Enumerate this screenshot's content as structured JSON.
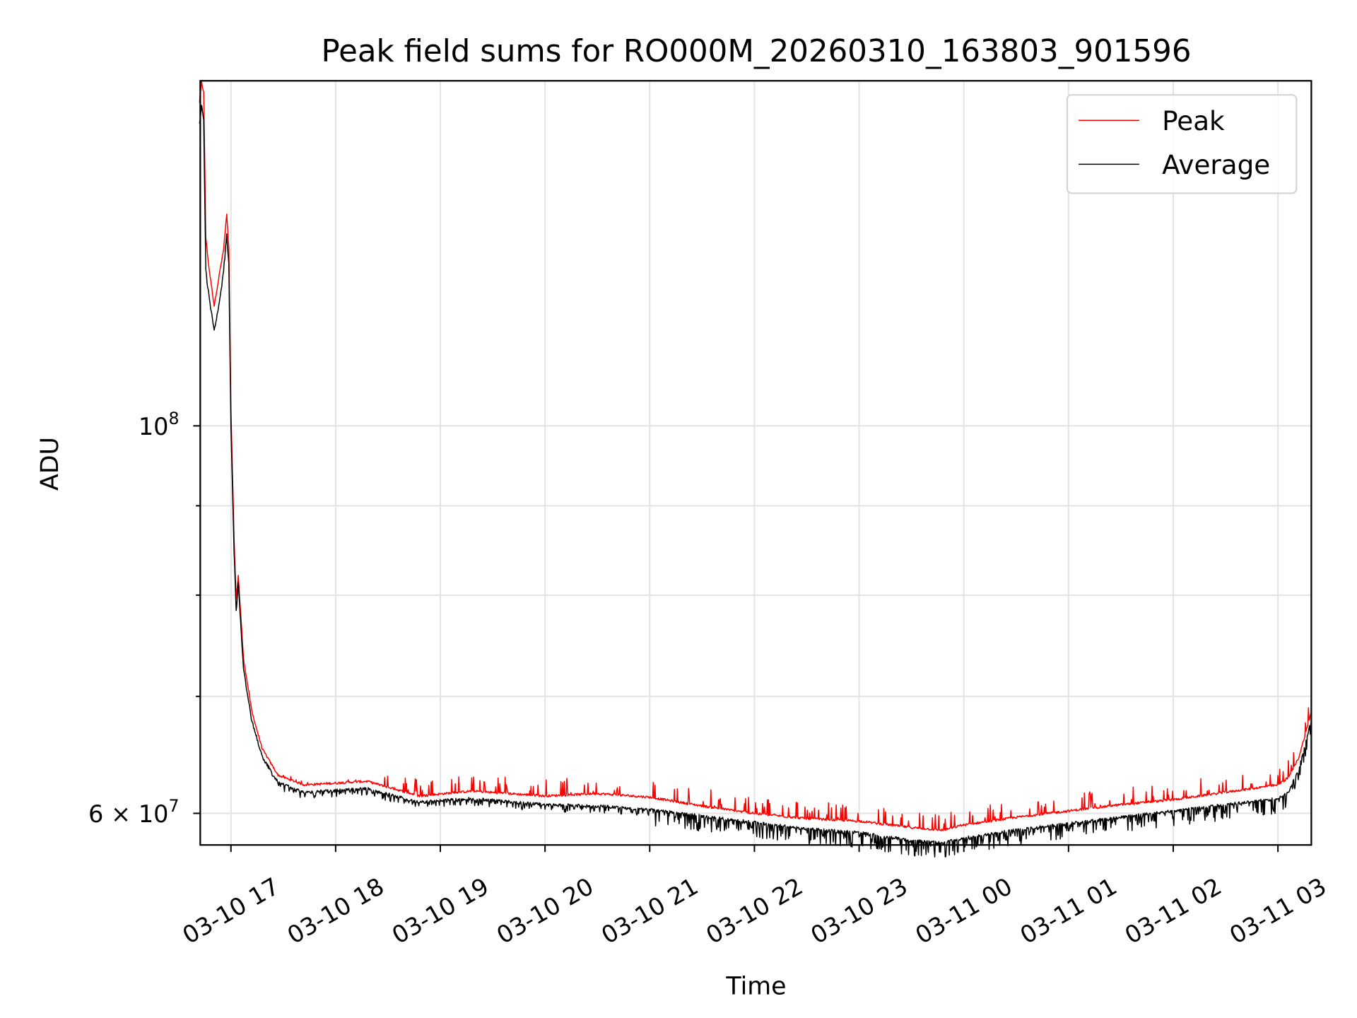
{
  "chart_data": {
    "type": "line",
    "title": "Peak field sums for RO000M_20260310_163803_901596",
    "xlabel": "Time",
    "ylabel": "ADU",
    "yscale": "log",
    "ylim": [
      57550000.0,
      157600000.0
    ],
    "xlim_hours": [
      16.707,
      27.319
    ],
    "x_unit": "hours since 03-10 00:00",
    "grid": true,
    "legend_position": "top-right",
    "x_ticks": [
      {
        "hour": 17,
        "label": "03-10 17"
      },
      {
        "hour": 18,
        "label": "03-10 18"
      },
      {
        "hour": 19,
        "label": "03-10 19"
      },
      {
        "hour": 20,
        "label": "03-10 20"
      },
      {
        "hour": 21,
        "label": "03-10 21"
      },
      {
        "hour": 22,
        "label": "03-10 22"
      },
      {
        "hour": 23,
        "label": "03-10 23"
      },
      {
        "hour": 24,
        "label": "03-11 00"
      },
      {
        "hour": 25,
        "label": "03-11 01"
      },
      {
        "hour": 26,
        "label": "03-11 02"
      },
      {
        "hour": 27,
        "label": "03-11 03"
      }
    ],
    "y_major_ticks": [
      {
        "value": 60000000.0,
        "base": "6 × 10",
        "exp": "7"
      },
      {
        "value": 100000000.0,
        "base": "10",
        "exp": "8"
      }
    ],
    "y_minor_ticks": [
      70000000.0,
      80000000.0,
      90000000.0
    ],
    "series": [
      {
        "name": "Peak",
        "color": "#ff0000",
        "jitter_up_fraction": 0.025,
        "points": [
          [
            16.7,
            15.3
          ],
          [
            16.72,
            15.7
          ],
          [
            16.74,
            15.5
          ],
          [
            16.76,
            12.8
          ],
          [
            16.79,
            12.3
          ],
          [
            16.84,
            11.7
          ],
          [
            16.9,
            12.3
          ],
          [
            16.93,
            12.6
          ],
          [
            16.96,
            13.2
          ],
          [
            16.98,
            12.6
          ],
          [
            17.0,
            10.2
          ],
          [
            17.03,
            8.6
          ],
          [
            17.05,
            7.95
          ],
          [
            17.07,
            8.2
          ],
          [
            17.12,
            7.35
          ],
          [
            17.2,
            6.85
          ],
          [
            17.3,
            6.52
          ],
          [
            17.45,
            6.3
          ],
          [
            17.7,
            6.22
          ],
          [
            18.3,
            6.25
          ],
          [
            18.8,
            6.13
          ],
          [
            19.3,
            6.17
          ],
          [
            20.0,
            6.13
          ],
          [
            20.5,
            6.15
          ],
          [
            21.0,
            6.12
          ],
          [
            21.5,
            6.05
          ],
          [
            22.0,
            5.99
          ],
          [
            22.5,
            5.95
          ],
          [
            23.0,
            5.93
          ],
          [
            23.5,
            5.88
          ],
          [
            23.8,
            5.86
          ],
          [
            24.0,
            5.9
          ],
          [
            24.5,
            5.96
          ],
          [
            25.0,
            6.01
          ],
          [
            25.5,
            6.06
          ],
          [
            26.0,
            6.1
          ],
          [
            26.5,
            6.16
          ],
          [
            27.0,
            6.22
          ],
          [
            27.1,
            6.28
          ],
          [
            27.2,
            6.45
          ],
          [
            27.32,
            6.85
          ]
        ]
      },
      {
        "name": "Average",
        "color": "#000000",
        "jitter_down_fraction": 0.022,
        "points": [
          [
            16.7,
            14.9
          ],
          [
            16.72,
            15.3
          ],
          [
            16.74,
            15.0
          ],
          [
            16.76,
            12.3
          ],
          [
            16.79,
            11.9
          ],
          [
            16.84,
            11.35
          ],
          [
            16.9,
            11.9
          ],
          [
            16.93,
            12.3
          ],
          [
            16.96,
            12.9
          ],
          [
            16.98,
            12.4
          ],
          [
            17.0,
            10.0
          ],
          [
            17.03,
            8.5
          ],
          [
            17.05,
            7.84
          ],
          [
            17.07,
            8.14
          ],
          [
            17.12,
            7.27
          ],
          [
            17.2,
            6.79
          ],
          [
            17.3,
            6.48
          ],
          [
            17.45,
            6.26
          ],
          [
            17.7,
            6.18
          ],
          [
            18.3,
            6.21
          ],
          [
            18.8,
            6.1
          ],
          [
            19.3,
            6.13
          ],
          [
            20.0,
            6.08
          ],
          [
            20.5,
            6.07
          ],
          [
            21.0,
            6.04
          ],
          [
            21.5,
            5.99
          ],
          [
            22.0,
            5.94
          ],
          [
            22.5,
            5.89
          ],
          [
            23.0,
            5.86
          ],
          [
            23.5,
            5.8
          ],
          [
            23.8,
            5.78
          ],
          [
            24.0,
            5.82
          ],
          [
            24.5,
            5.88
          ],
          [
            25.0,
            5.93
          ],
          [
            25.5,
            5.98
          ],
          [
            26.0,
            6.03
          ],
          [
            26.5,
            6.08
          ],
          [
            27.0,
            6.13
          ],
          [
            27.1,
            6.18
          ],
          [
            27.2,
            6.38
          ],
          [
            27.32,
            6.8
          ]
        ]
      }
    ]
  }
}
